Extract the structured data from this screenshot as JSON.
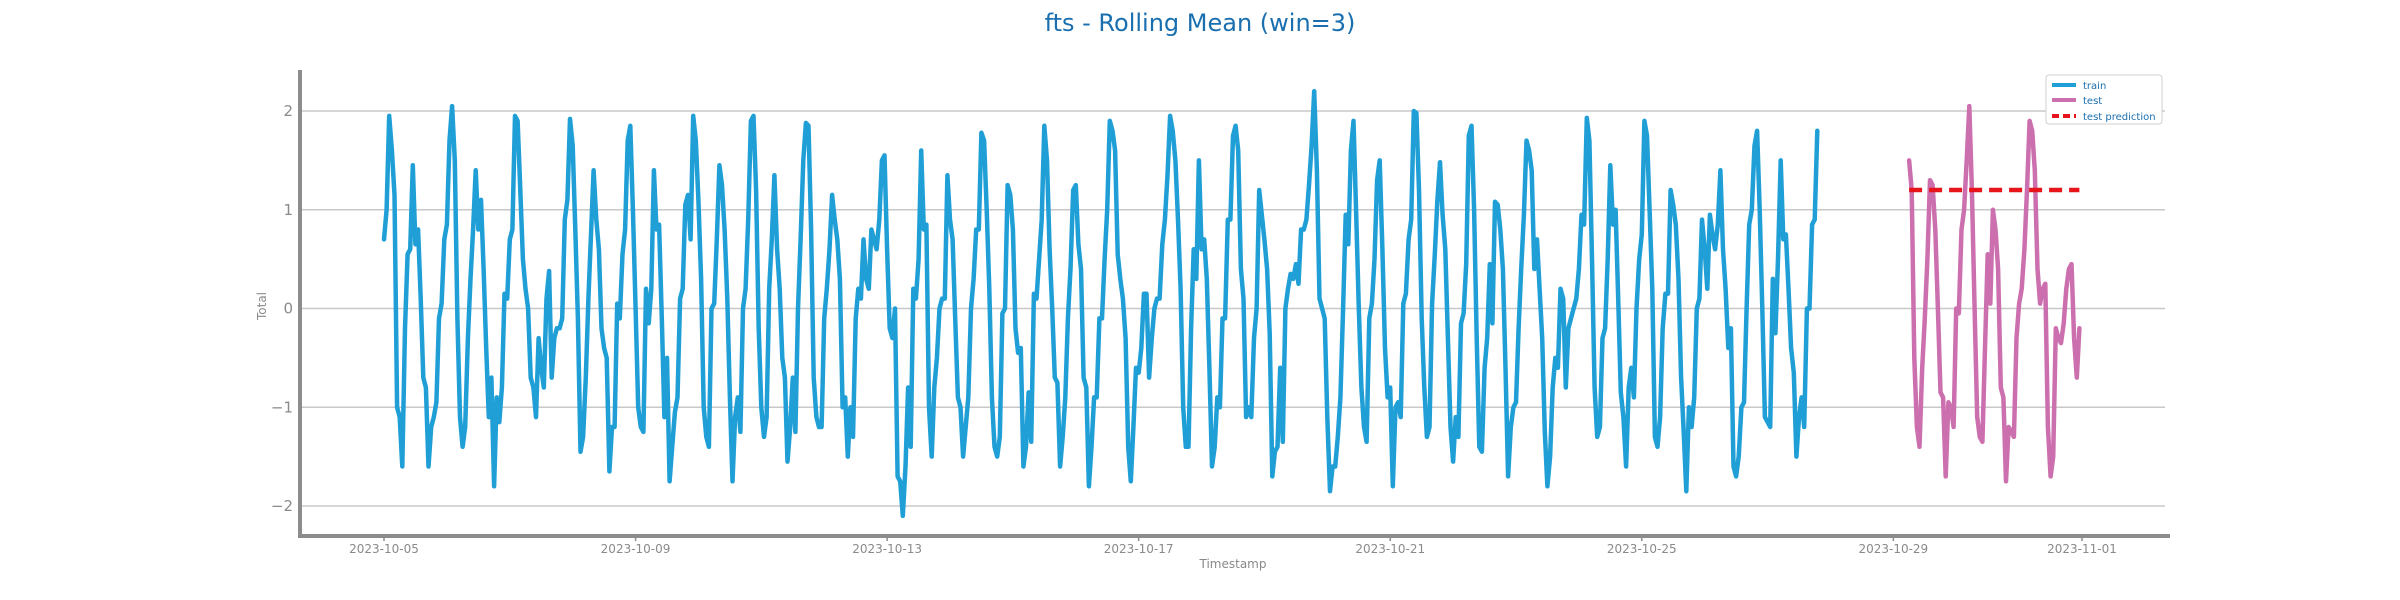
{
  "chart_data": {
    "type": "line",
    "title": "fts - Rolling Mean (win=3)",
    "xlabel": "Timestamp",
    "ylabel": "Total",
    "ylim": [
      -2.3,
      2.4
    ],
    "grid": true,
    "legend_position": "top-right",
    "x_start": "2023-10-05",
    "x_end": "2023-11-01",
    "x_ticks": [
      "2023-10-05",
      "2023-10-09",
      "2023-10-13",
      "2023-10-17",
      "2023-10-21",
      "2023-10-25",
      "2023-10-29",
      "2023-11-01"
    ],
    "y_ticks": [
      -2,
      -1,
      0,
      1,
      2
    ],
    "y_tick_labels": [
      "−2",
      "−1",
      "0",
      "1",
      "2"
    ],
    "colors": {
      "train": "#1f9fd6",
      "test": "#cc6fae",
      "test_prediction": "#e8141b"
    },
    "series": [
      {
        "name": "train",
        "x_start_day": 0,
        "step_hours": 1,
        "values": [
          0.7,
          1.0,
          1.95,
          1.6,
          1.15,
          -1.0,
          -1.1,
          -1.6,
          -0.2,
          0.55,
          0.6,
          1.45,
          0.65,
          0.8,
          0.1,
          -0.7,
          -0.8,
          -1.6,
          -1.2,
          -1.1,
          -0.95,
          -0.1,
          0.05,
          0.7,
          0.85,
          1.7,
          2.05,
          1.5,
          -0.1,
          -1.1,
          -1.4,
          -1.2,
          -0.3,
          0.3,
          0.8,
          1.4,
          0.8,
          1.1,
          0.4,
          -0.4,
          -1.1,
          -0.7,
          -1.8,
          -0.9,
          -1.15,
          -0.8,
          0.15,
          0.1,
          0.7,
          0.8,
          1.95,
          1.9,
          1.2,
          0.5,
          0.2,
          0.0,
          -0.7,
          -0.8,
          -1.1,
          -0.3,
          -0.6,
          -0.8,
          0.1,
          0.38,
          -0.7,
          -0.3,
          -0.2,
          -0.2,
          -0.1,
          0.9,
          1.1,
          1.92,
          1.65,
          0.8,
          -0.1,
          -1.45,
          -1.3,
          -0.7,
          0.1,
          0.75,
          1.4,
          0.9,
          0.6,
          -0.2,
          -0.4,
          -0.5,
          -1.65,
          -1.2,
          -1.2,
          0.05,
          -0.1,
          0.55,
          0.8,
          1.7,
          1.85,
          1.0,
          0.0,
          -1.0,
          -1.2,
          -1.25,
          0.2,
          -0.15,
          0.2,
          1.4,
          0.8,
          0.85,
          -0.1,
          -1.1,
          -0.5,
          -1.75,
          -1.4,
          -1.05,
          -0.9,
          0.1,
          0.2,
          1.05,
          1.15,
          0.7,
          1.95,
          1.7,
          1.1,
          0.3,
          -1.0,
          -1.3,
          -1.4,
          0.0,
          0.05,
          0.7,
          1.45,
          1.25,
          0.8,
          0.1,
          -0.9,
          -1.75,
          -1.1,
          -0.9,
          -1.25,
          0.0,
          0.2,
          0.9,
          1.9,
          1.95,
          1.2,
          -0.2,
          -1.0,
          -1.3,
          -1.1,
          0.2,
          0.7,
          1.35,
          0.6,
          0.2,
          -0.5,
          -0.7,
          -1.55,
          -1.2,
          -0.7,
          -1.25,
          0.0,
          0.7,
          1.5,
          1.88,
          1.85,
          0.8,
          -0.7,
          -1.1,
          -1.2,
          -1.2,
          -0.1,
          0.2,
          0.6,
          1.15,
          0.9,
          0.7,
          0.3,
          -1.0,
          -0.9,
          -1.5,
          -1.0,
          -1.3,
          -0.1,
          0.2,
          0.1,
          0.7,
          0.3,
          0.2,
          0.8,
          0.7,
          0.6,
          0.9,
          1.5,
          1.55,
          0.6,
          -0.2,
          -0.3,
          0.0,
          -1.7,
          -1.75,
          -2.1,
          -1.6,
          -0.8,
          -1.4,
          0.2,
          0.1,
          0.5,
          1.6,
          0.8,
          0.85,
          -1.0,
          -1.5,
          -0.8,
          -0.5,
          0.0,
          0.1,
          0.1,
          1.35,
          0.9,
          0.7,
          -0.1,
          -0.9,
          -1.0,
          -1.5,
          -1.2,
          -0.9,
          0.0,
          0.3,
          0.8,
          0.8,
          1.78,
          1.7,
          1.0,
          0.2,
          -0.9,
          -1.4,
          -1.5,
          -1.3,
          -0.05,
          0.0,
          1.25,
          1.15,
          0.8,
          -0.2,
          -0.45,
          -0.4,
          -1.6,
          -1.4,
          -0.85,
          -1.35,
          0.15,
          0.1,
          0.5,
          0.9,
          1.85,
          1.5,
          0.6,
          0.0,
          -0.7,
          -0.75,
          -1.6,
          -1.3,
          -0.9,
          -0.1,
          0.4,
          1.2,
          1.25,
          0.65,
          0.4,
          -0.7,
          -0.8,
          -1.8,
          -1.4,
          -0.9,
          -0.9,
          -0.1,
          -0.1,
          0.5,
          1.0,
          1.9,
          1.8,
          1.6,
          0.55,
          0.3,
          0.1,
          -0.3,
          -1.4,
          -1.75,
          -1.2,
          -0.6,
          -0.65,
          -0.4,
          0.15,
          0.15,
          -0.7,
          -0.3,
          0.0,
          0.1,
          0.1,
          0.65,
          0.9,
          1.35,
          1.95,
          1.8,
          1.5,
          0.9,
          0.2,
          -1.0,
          -1.4,
          -1.4,
          -0.2,
          0.6,
          0.3,
          1.5,
          0.6,
          0.7,
          0.3,
          -0.6,
          -1.6,
          -1.4,
          -0.9,
          -1.0,
          -0.1,
          -0.1,
          0.9,
          0.9,
          1.75,
          1.85,
          1.6,
          0.4,
          0.1,
          -1.1,
          -1.0,
          -1.1,
          -0.3,
          0.0,
          1.2,
          0.95,
          0.7,
          0.4,
          -0.25,
          -1.7,
          -1.45,
          -1.4,
          -0.6,
          -1.35,
          0.0,
          0.2,
          0.35,
          0.3,
          0.45,
          0.25,
          0.8,
          0.8,
          0.9,
          1.25,
          1.65,
          2.2,
          1.4,
          0.1,
          0.0,
          -0.1,
          -1.1,
          -1.85,
          -1.6,
          -1.6,
          -1.3,
          -0.9,
          0.0,
          0.95,
          0.65,
          1.6,
          1.9,
          0.95,
          0.0,
          -0.8,
          -1.2,
          -1.35,
          -0.1,
          0.05,
          0.5,
          1.3,
          1.5,
          0.6,
          -0.4,
          -0.9,
          -0.8,
          -1.8,
          -1.0,
          -0.95,
          -1.1,
          0.05,
          0.15,
          0.7,
          0.9,
          2.0,
          1.98,
          1.2,
          -0.1,
          -0.8,
          -1.3,
          -1.2,
          0.05,
          0.55,
          1.1,
          1.48,
          0.95,
          0.6,
          -0.3,
          -1.2,
          -1.55,
          -1.1,
          -1.3,
          -0.15,
          -0.05,
          0.45,
          1.75,
          1.85,
          1.0,
          -0.3,
          -1.4,
          -1.45,
          -0.6,
          -0.3,
          0.45,
          -0.15,
          1.08,
          1.05,
          0.8,
          0.4,
          -0.6,
          -1.7,
          -1.2,
          -1.0,
          -0.95,
          -0.2,
          0.4,
          0.95,
          1.7,
          1.6,
          1.4,
          0.4,
          0.7,
          0.2,
          -0.3,
          -1.25,
          -1.8,
          -1.5,
          -0.8,
          -0.5,
          -0.6,
          0.2,
          0.1,
          -0.8,
          -0.2,
          -0.1,
          0.0,
          0.1,
          0.4,
          0.95,
          0.85,
          1.93,
          1.7,
          0.5,
          -0.8,
          -1.3,
          -1.2,
          -0.3,
          -0.2,
          0.5,
          1.45,
          0.85,
          1.0,
          0.1,
          -0.85,
          -1.1,
          -1.6,
          -0.8,
          -0.6,
          -0.9,
          0.0,
          0.5,
          0.75,
          1.9,
          1.75,
          1.0,
          0.2,
          -1.3,
          -1.4,
          -1.1,
          -0.2,
          0.15,
          0.15,
          1.2,
          1.05,
          0.85,
          0.3,
          -0.7,
          -1.25,
          -1.85,
          -1.0,
          -1.2,
          -0.9,
          0.0,
          0.1,
          0.9,
          0.6,
          0.2,
          0.95,
          0.75,
          0.6,
          0.85,
          1.4,
          0.6,
          0.2,
          -0.4,
          -0.2,
          -1.6,
          -1.7,
          -1.5,
          -1.0,
          -0.95,
          0.0,
          0.85,
          1.0,
          1.65,
          1.8,
          1.0,
          0.0,
          -1.1,
          -1.15,
          -1.2,
          0.3,
          -0.25,
          0.5,
          1.5,
          0.7,
          0.75,
          0.2,
          -0.4,
          -0.65,
          -1.5,
          -1.1,
          -0.9,
          -1.2,
          0.0,
          0.0,
          0.85,
          0.9,
          1.8
        ]
      },
      {
        "name": "test",
        "x_start_day": 24.25,
        "step_hours": 1,
        "values": [
          1.5,
          1.2,
          -0.5,
          -1.2,
          -1.4,
          -0.6,
          -0.1,
          0.5,
          1.3,
          1.25,
          0.8,
          0.0,
          -0.85,
          -0.9,
          -1.7,
          -0.95,
          -1.0,
          -1.2,
          0.0,
          -0.05,
          0.8,
          1.0,
          1.5,
          2.05,
          1.2,
          0.0,
          -1.1,
          -1.3,
          -1.35,
          -0.4,
          0.55,
          0.05,
          1.0,
          0.8,
          0.4,
          -0.8,
          -0.9,
          -1.75,
          -1.2,
          -1.25,
          -1.3,
          -0.3,
          0.05,
          0.2,
          0.6,
          1.2,
          1.9,
          1.8,
          1.4,
          0.4,
          0.05,
          0.2,
          0.25,
          -1.2,
          -1.7,
          -1.5,
          -0.2,
          -0.3,
          -0.35,
          -0.15,
          0.2,
          0.4,
          0.45,
          -0.3,
          -0.7,
          -0.2
        ]
      },
      {
        "name": "test prediction",
        "x_start_day": 24.25,
        "step_hours": 1,
        "values": [
          1.2,
          1.2,
          1.2,
          1.2,
          1.2,
          1.2,
          1.2,
          1.2,
          1.2,
          1.2,
          1.2,
          1.2,
          1.2,
          1.2,
          1.2,
          1.2,
          1.2,
          1.2,
          1.2,
          1.2,
          1.2,
          1.2,
          1.2,
          1.2,
          1.2,
          1.2,
          1.2,
          1.2,
          1.2,
          1.2,
          1.2,
          1.2,
          1.2,
          1.2,
          1.2,
          1.2,
          1.2,
          1.2,
          1.2,
          1.2,
          1.2,
          1.2,
          1.2,
          1.2,
          1.2,
          1.2,
          1.2,
          1.2,
          1.2,
          1.2,
          1.2,
          1.2,
          1.2,
          1.2,
          1.2,
          1.2,
          1.2,
          1.2,
          1.2,
          1.2,
          1.2,
          1.2,
          1.2,
          1.2,
          1.2,
          1.2
        ]
      }
    ]
  }
}
